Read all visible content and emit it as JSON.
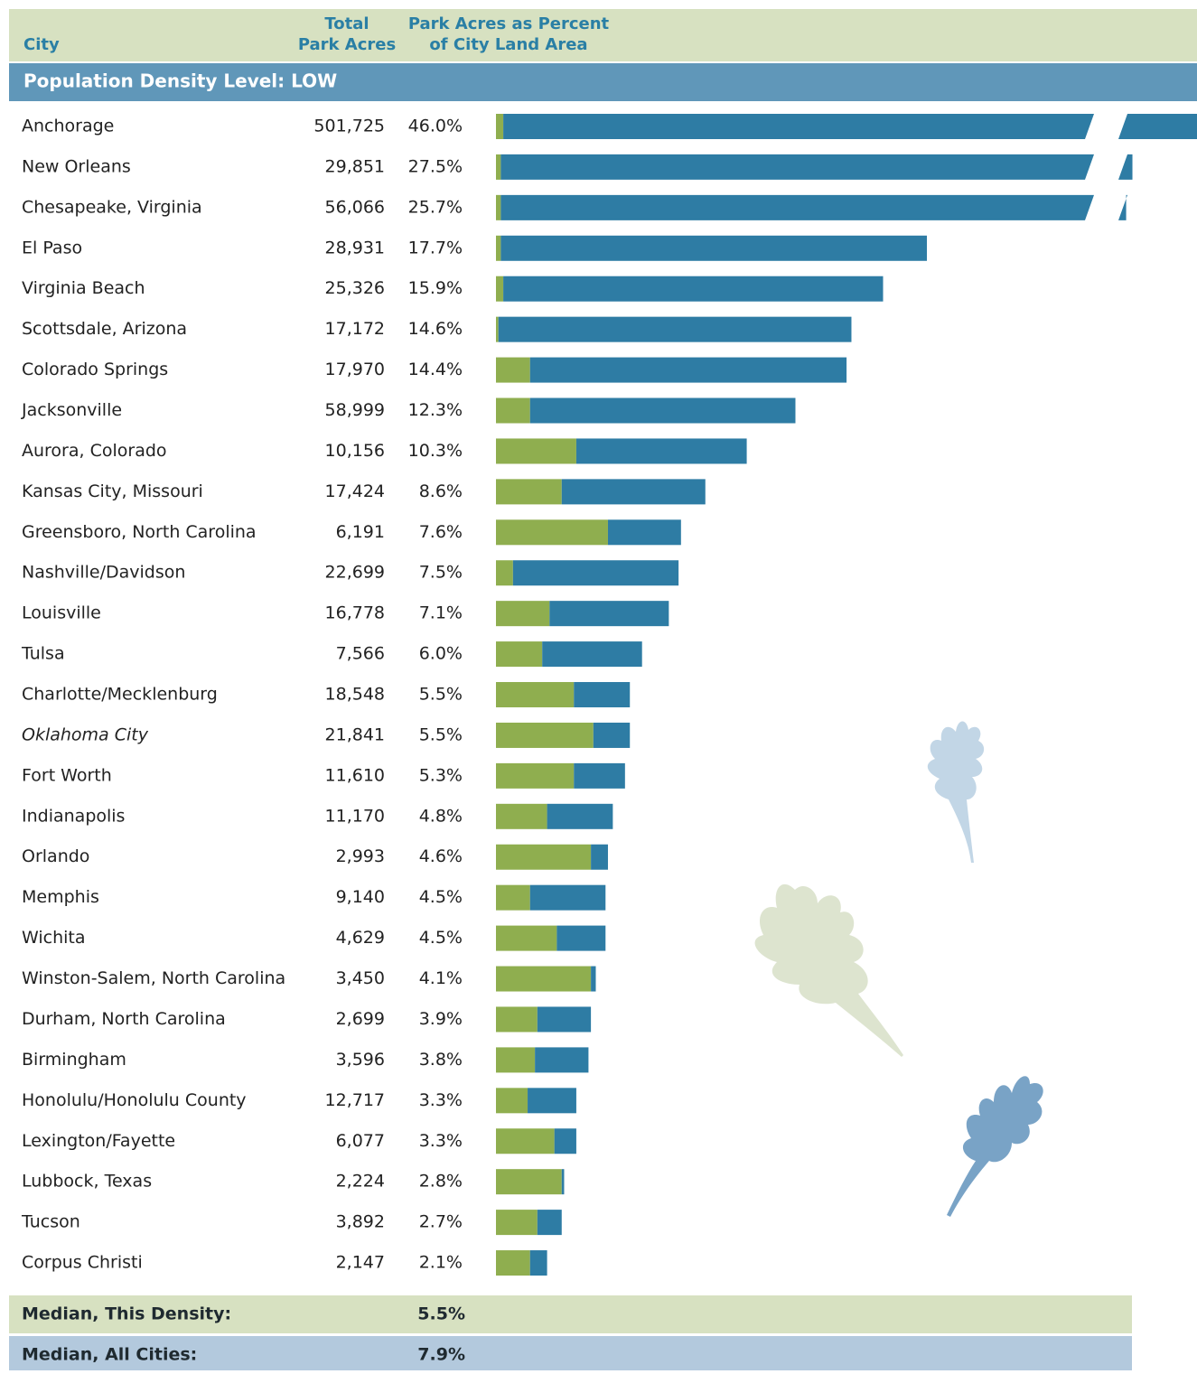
{
  "header": {
    "city": "City",
    "acres": [
      "Total",
      "Park Acres"
    ],
    "percent": [
      "Park Acres as Percent",
      "of City Land Area"
    ]
  },
  "section": "Population Density Level: LOW",
  "rows": [
    {
      "city": "Anchorage",
      "acres": "501,725",
      "percent": "46.0%",
      "green": 0.3,
      "blue": 45.7
    },
    {
      "city": "New Orleans",
      "acres": "29,851",
      "percent": "27.5%",
      "green": 0.2,
      "blue": 27.3
    },
    {
      "city": "Chesapeake, Virginia",
      "acres": "56,066",
      "percent": "25.7%",
      "green": 0.2,
      "blue": 25.5
    },
    {
      "city": "El Paso",
      "acres": "28,931",
      "percent": "17.7%",
      "green": 0.2,
      "blue": 17.5
    },
    {
      "city": "Virginia Beach",
      "acres": "25,326",
      "percent": "15.9%",
      "green": 0.3,
      "blue": 15.6
    },
    {
      "city": "Scottsdale, Arizona",
      "acres": "17,172",
      "percent": "14.6%",
      "green": 0.1,
      "blue": 14.5
    },
    {
      "city": "Colorado Springs",
      "acres": "17,970",
      "percent": "14.4%",
      "green": 1.4,
      "blue": 13.0
    },
    {
      "city": "Jacksonville",
      "acres": "58,999",
      "percent": "12.3%",
      "green": 1.4,
      "blue": 10.9
    },
    {
      "city": "Aurora, Colorado",
      "acres": "10,156",
      "percent": "10.3%",
      "green": 3.3,
      "blue": 7.0
    },
    {
      "city": "Kansas City, Missouri",
      "acres": "17,424",
      "percent": "8.6%",
      "green": 2.7,
      "blue": 5.9
    },
    {
      "city": "Greensboro, North Carolina",
      "acres": "6,191",
      "percent": "7.6%",
      "green": 4.6,
      "blue": 3.0
    },
    {
      "city": "Nashville/Davidson",
      "acres": "22,699",
      "percent": "7.5%",
      "green": 0.7,
      "blue": 6.8
    },
    {
      "city": "Louisville",
      "acres": "16,778",
      "percent": "7.1%",
      "green": 2.2,
      "blue": 4.9
    },
    {
      "city": "Tulsa",
      "acres": "7,566",
      "percent": "6.0%",
      "green": 1.9,
      "blue": 4.1
    },
    {
      "city": "Charlotte/Mecklenburg",
      "acres": "18,548",
      "percent": "5.5%",
      "green": 3.2,
      "blue": 2.3
    },
    {
      "city": "Oklahoma City",
      "acres": "21,841",
      "percent": "5.5%",
      "green": 4.0,
      "blue": 1.5,
      "italic": true
    },
    {
      "city": "Fort Worth",
      "acres": "11,610",
      "percent": "5.3%",
      "green": 3.2,
      "blue": 2.1
    },
    {
      "city": "Indianapolis",
      "acres": "11,170",
      "percent": "4.8%",
      "green": 2.1,
      "blue": 2.7
    },
    {
      "city": "Orlando",
      "acres": "2,993",
      "percent": "4.6%",
      "green": 3.9,
      "blue": 0.7
    },
    {
      "city": "Memphis",
      "acres": "9,140",
      "percent": "4.5%",
      "green": 1.4,
      "blue": 3.1
    },
    {
      "city": "Wichita",
      "acres": "4,629",
      "percent": "4.5%",
      "green": 2.5,
      "blue": 2.0
    },
    {
      "city": "Winston-Salem, North Carolina",
      "acres": "3,450",
      "percent": "4.1%",
      "green": 3.9,
      "blue": 0.2
    },
    {
      "city": "Durham, North Carolina",
      "acres": "2,699",
      "percent": "3.9%",
      "green": 1.7,
      "blue": 2.2
    },
    {
      "city": "Birmingham",
      "acres": "3,596",
      "percent": "3.8%",
      "green": 1.6,
      "blue": 2.2
    },
    {
      "city": "Honolulu/Honolulu County",
      "acres": "12,717",
      "percent": "3.3%",
      "green": 1.3,
      "blue": 2.0
    },
    {
      "city": "Lexington/Fayette",
      "acres": "6,077",
      "percent": "3.3%",
      "green": 2.4,
      "blue": 0.9
    },
    {
      "city": "Lubbock, Texas",
      "acres": "2,224",
      "percent": "2.8%",
      "green": 2.7,
      "blue": 0.1
    },
    {
      "city": "Tucson",
      "acres": "3,892",
      "percent": "2.7%",
      "green": 1.7,
      "blue": 1.0
    },
    {
      "city": "Corpus Christi",
      "acres": "2,147",
      "percent": "2.1%",
      "green": 1.4,
      "blue": 0.7
    }
  ],
  "footer": [
    {
      "label": "Median, This Density:",
      "value": "5.5%"
    },
    {
      "label": "Median, All Cities:",
      "value": "7.9%"
    }
  ]
}
